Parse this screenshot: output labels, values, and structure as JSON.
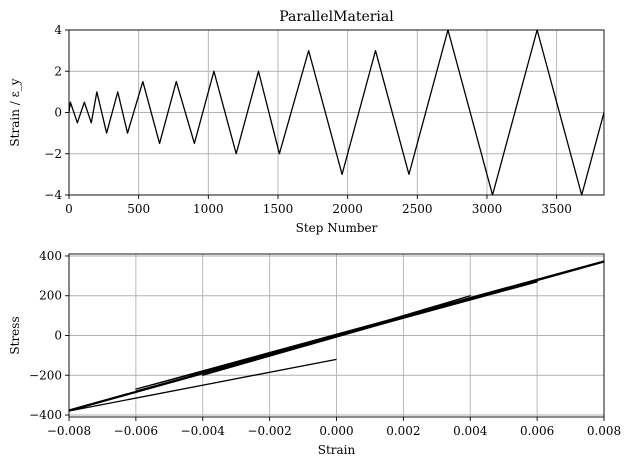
{
  "chart_data": [
    {
      "type": "line",
      "title": "ParallelMaterial",
      "xlabel": "Step Number",
      "ylabel": "Strain / ε_y",
      "xlim": [
        0,
        3840
      ],
      "ylim": [
        -4,
        4
      ],
      "grid": true,
      "xticks": [
        0,
        500,
        1000,
        1500,
        2000,
        2500,
        3000,
        3500
      ],
      "xtick_labels": [
        "0",
        "500",
        "1000",
        "1500",
        "2000",
        "2500",
        "3000",
        "3500"
      ],
      "yticks": [
        -4,
        -2,
        0,
        2,
        4
      ],
      "ytick_labels": [
        "−4",
        "−2",
        "0",
        "2",
        "4"
      ],
      "series": [
        {
          "x": [
            0,
            10,
            60,
            110,
            160,
            200,
            270,
            350,
            420,
            530,
            650,
            770,
            900,
            1040,
            1200,
            1360,
            1510,
            1720,
            1960,
            2200,
            2440,
            2720,
            3040,
            3360,
            3680,
            3840
          ],
          "y": [
            0,
            0.5,
            -0.5,
            0.5,
            -0.5,
            1,
            -1,
            1,
            -1,
            1.5,
            -1.5,
            1.5,
            -1.5,
            2,
            -2,
            2,
            -2,
            3,
            -3,
            3,
            -3,
            4,
            -4,
            4,
            -4,
            0
          ]
        }
      ]
    },
    {
      "type": "line",
      "xlabel": "Strain",
      "ylabel": "Stress",
      "xlim": [
        -0.008,
        0.008
      ],
      "ylim": [
        -410,
        410
      ],
      "grid": true,
      "xticks": [
        -0.008,
        -0.006,
        -0.004,
        -0.002,
        0,
        0.002,
        0.004,
        0.006,
        0.008
      ],
      "xtick_labels": [
        "−0.008",
        "−0.006",
        "−0.004",
        "−0.002",
        "0.000",
        "0.002",
        "0.004",
        "0.006",
        "0.008"
      ],
      "yticks": [
        -400,
        -200,
        0,
        200,
        400
      ],
      "ytick_labels": [
        "−400",
        "−200",
        "0",
        "200",
        "400"
      ],
      "series": [
        {
          "x": [
            0,
            0.001,
            -0.001,
            0.001,
            -0.001,
            0.002,
            -0.002,
            0.002,
            -0.002,
            0.003,
            -0.003,
            0.003,
            -0.003,
            0.004,
            -0.004,
            0.004,
            -0.004,
            0.006,
            -0.006,
            0.006,
            -0.006,
            0.008,
            -0.008,
            0.008,
            -0.008,
            0
          ],
          "y": [
            0,
            50,
            -50,
            50,
            -50,
            100,
            -100,
            100,
            -100,
            150,
            -150,
            150,
            -150,
            200,
            -200,
            200,
            -200,
            280,
            -280,
            270,
            -270,
            375,
            -375,
            370,
            -380,
            -120
          ]
        }
      ]
    }
  ]
}
